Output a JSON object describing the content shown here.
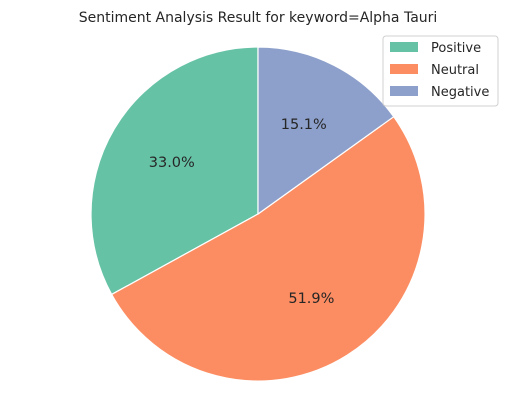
{
  "chart_data": {
    "type": "pie",
    "title": "Sentiment Analysis Result for keyword=Alpha Tauri",
    "categories": [
      "Positive",
      "Neutral",
      "Negative"
    ],
    "values": [
      33.0,
      51.9,
      15.1
    ],
    "value_labels": [
      "33.0%",
      "51.9%",
      "15.1%"
    ],
    "colors": [
      "#66c2a5",
      "#fc8d62",
      "#8da0cb"
    ],
    "start_angle_deg": 90,
    "direction": "counterclockwise",
    "legend_position": "top-right",
    "slice_edge_color": "#ffffff"
  }
}
